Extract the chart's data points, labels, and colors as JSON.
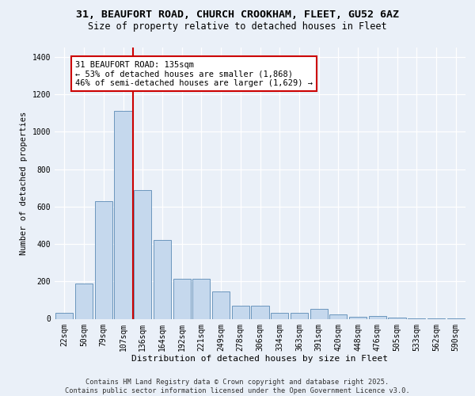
{
  "title_line1": "31, BEAUFORT ROAD, CHURCH CROOKHAM, FLEET, GU52 6AZ",
  "title_line2": "Size of property relative to detached houses in Fleet",
  "xlabel": "Distribution of detached houses by size in Fleet",
  "ylabel": "Number of detached properties",
  "categories": [
    "22sqm",
    "50sqm",
    "79sqm",
    "107sqm",
    "136sqm",
    "164sqm",
    "192sqm",
    "221sqm",
    "249sqm",
    "278sqm",
    "306sqm",
    "334sqm",
    "363sqm",
    "391sqm",
    "420sqm",
    "448sqm",
    "476sqm",
    "505sqm",
    "533sqm",
    "562sqm",
    "590sqm"
  ],
  "values": [
    30,
    190,
    630,
    1110,
    690,
    420,
    215,
    215,
    145,
    70,
    70,
    30,
    30,
    55,
    25,
    10,
    15,
    5,
    3,
    1,
    1
  ],
  "bar_color": "#c5d8ed",
  "bar_edge_color": "#5a8ab5",
  "vline_index": 4,
  "vline_color": "#cc0000",
  "ylim": [
    0,
    1450
  ],
  "yticks": [
    0,
    200,
    400,
    600,
    800,
    1000,
    1200,
    1400
  ],
  "annotation_text": "31 BEAUFORT ROAD: 135sqm\n← 53% of detached houses are smaller (1,868)\n46% of semi-detached houses are larger (1,629) →",
  "annotation_box_color": "#ffffff",
  "annotation_box_edge": "#cc0000",
  "footer_line1": "Contains HM Land Registry data © Crown copyright and database right 2025.",
  "footer_line2": "Contains public sector information licensed under the Open Government Licence v3.0.",
  "bg_color": "#eaf0f8",
  "plot_bg_color": "#eaf0f8",
  "title1_fontsize": 9.5,
  "title2_fontsize": 8.5,
  "ylabel_fontsize": 7.5,
  "xlabel_fontsize": 8,
  "tick_fontsize": 7,
  "annot_fontsize": 7.5,
  "footer_fontsize": 6.2
}
